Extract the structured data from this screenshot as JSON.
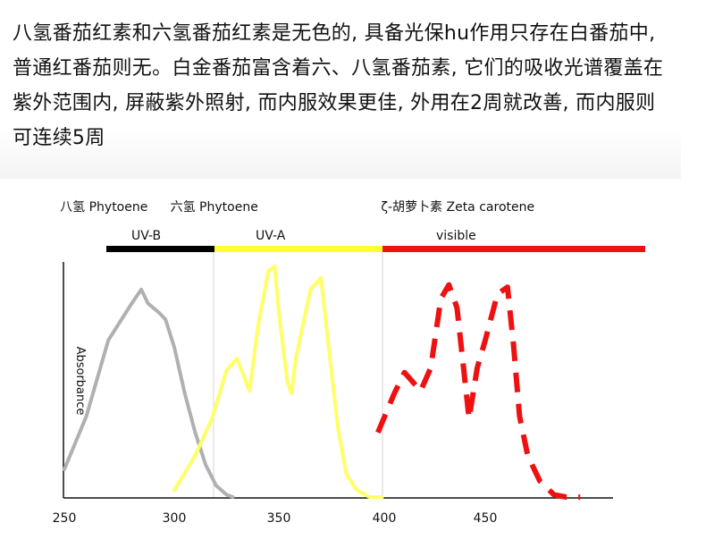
{
  "text": {
    "paragraph": "八氢番茄红素和六氢番茄红素是无色的, 具备光保hu作用只存在白番茄中, 普通红番茄则无。白金番茄富含着六、八氢番茄素, 它们的吸收光谱覆盖在紫外范围内, 屏蔽紫外照射, 而内服效果更佳, 外用在2周就改善, 而内服则可连续5周"
  },
  "chart_data": {
    "type": "line",
    "ylabel": "Absorbance",
    "x_ticks": [
      "250",
      "300",
      "350",
      "400",
      "450"
    ],
    "x_tick_values": [
      250,
      300,
      350,
      400,
      450
    ],
    "xlim": [
      250,
      510
    ],
    "ylim": [
      0,
      1
    ],
    "region_dividers": [
      320,
      400
    ],
    "bands": [
      {
        "label": "UV-B",
        "from": 270,
        "to": 320,
        "color": "#000000"
      },
      {
        "label": "UV-A",
        "from": 320,
        "to": 400,
        "color": "#ffff33"
      },
      {
        "label": "visible",
        "from": 400,
        "to": 520,
        "color": "#ee1111"
      }
    ],
    "compound_labels": [
      {
        "text": "八氢 Phytoene",
        "x": 270
      },
      {
        "text": "六氢 Phytoene",
        "x": 330
      },
      {
        "text": "ζ-胡萝卜素 Zeta carotene",
        "x": 430
      }
    ],
    "series": [
      {
        "name": "八氢 Phytoene",
        "color": "#b0b0b0",
        "style": "solid",
        "x": [
          250,
          260,
          270,
          280,
          285,
          288,
          293,
          296,
          300,
          305,
          310,
          315,
          320,
          325,
          328
        ],
        "y": [
          0.12,
          0.35,
          0.68,
          0.83,
          0.9,
          0.84,
          0.8,
          0.77,
          0.65,
          0.45,
          0.28,
          0.14,
          0.05,
          0.01,
          0.0
        ]
      },
      {
        "name": "六氢 Phytoene",
        "color": "#ffff66",
        "style": "solid",
        "x": [
          300,
          310,
          318,
          325,
          330,
          336,
          340,
          345,
          348,
          350,
          354,
          356,
          358,
          365,
          370,
          374,
          378,
          382,
          387,
          393,
          399
        ],
        "y": [
          0.03,
          0.18,
          0.34,
          0.55,
          0.6,
          0.46,
          0.74,
          0.98,
          1.0,
          0.8,
          0.5,
          0.45,
          0.6,
          0.9,
          0.95,
          0.62,
          0.3,
          0.1,
          0.03,
          0.0,
          0.0
        ]
      },
      {
        "name": "ζ-胡萝卜素 Zeta carotene",
        "color": "#ee1111",
        "style": "dashed",
        "x": [
          397,
          405,
          410,
          418,
          423,
          428,
          432,
          436,
          442,
          446,
          450,
          456,
          461,
          464,
          467,
          471,
          477,
          484,
          490,
          497
        ],
        "y": [
          0.28,
          0.45,
          0.54,
          0.46,
          0.56,
          0.86,
          0.92,
          0.82,
          0.34,
          0.56,
          0.68,
          0.88,
          0.91,
          0.66,
          0.35,
          0.18,
          0.07,
          0.01,
          0.0,
          0.0
        ]
      }
    ]
  }
}
